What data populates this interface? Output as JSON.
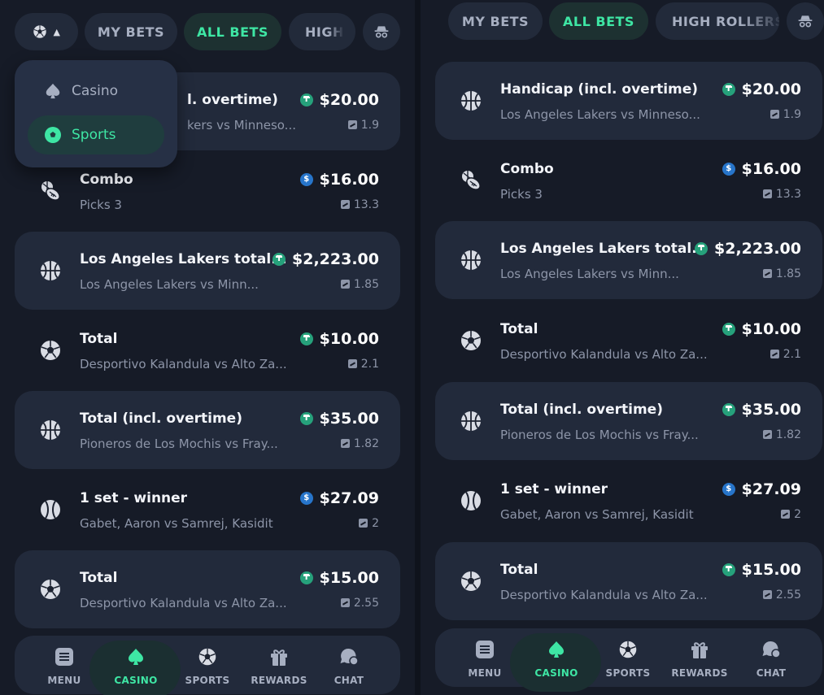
{
  "colors": {
    "accent": "#3ee6a4",
    "tether": "#26a17b",
    "usdc": "#2775ca",
    "bg": "#161b27",
    "card": "#222a3b"
  },
  "left": {
    "filter_button": {
      "icon": "soccer-ball-icon",
      "caret": "▲"
    },
    "tabs": [
      "MY BETS",
      "ALL BETS",
      "HIGH"
    ],
    "dropdown": [
      {
        "label": "Casino",
        "icon": "spade-icon"
      },
      {
        "label": "Sports",
        "icon": "soccer-ball-icon"
      }
    ],
    "bets": [
      {
        "title": "Handicap (incl. overtime)",
        "title_visible": "l. overtime)",
        "subtitle": "Los Angeles Lakers vs Minneso...",
        "subtitle_visible": "kers vs Minneso...",
        "amount": "$20.00",
        "coin": "tether",
        "odds": "1.9",
        "icon": "basketball-icon"
      },
      {
        "title": "Combo",
        "subtitle": "Picks 3",
        "amount": "$16.00",
        "coin": "usdc",
        "odds": "13.3",
        "icon": "combo-icon"
      },
      {
        "title": "Los Angeles Lakers total...",
        "subtitle": "Los Angeles Lakers vs Minn...",
        "amount": "$2,223.00",
        "coin": "tether",
        "odds": "1.85",
        "icon": "basketball-icon"
      },
      {
        "title": "Total",
        "subtitle": "Desportivo Kalandula vs Alto Za...",
        "amount": "$10.00",
        "coin": "tether",
        "odds": "2.1",
        "icon": "soccer-ball-icon"
      },
      {
        "title": "Total (incl. overtime)",
        "subtitle": "Pioneros de Los Mochis vs Fray...",
        "amount": "$35.00",
        "coin": "tether",
        "odds": "1.82",
        "icon": "basketball-icon"
      },
      {
        "title": "1 set - winner",
        "subtitle": "Gabet, Aaron vs Samrej, Kasidit",
        "amount": "$27.09",
        "coin": "usdc",
        "odds": "2",
        "icon": "tennis-ball-icon"
      },
      {
        "title": "Total",
        "subtitle": "Desportivo Kalandula vs Alto Za...",
        "amount": "$15.00",
        "coin": "tether",
        "odds": "2.55",
        "icon": "soccer-ball-icon"
      }
    ],
    "nav": [
      {
        "label": "MENU",
        "icon": "menu-icon"
      },
      {
        "label": "CASINO",
        "icon": "spade-icon",
        "active": true
      },
      {
        "label": "SPORTS",
        "icon": "soccer-ball-icon"
      },
      {
        "label": "REWARDS",
        "icon": "gift-icon"
      },
      {
        "label": "CHAT",
        "icon": "chat-icon"
      }
    ]
  },
  "right": {
    "tabs": [
      "MY BETS",
      "ALL BETS",
      "HIGH ROLLERS"
    ],
    "bets": [
      {
        "title": "Handicap (incl. overtime)",
        "subtitle": "Los Angeles Lakers vs Minneso...",
        "amount": "$20.00",
        "coin": "tether",
        "odds": "1.9"
      },
      {
        "title": "Combo",
        "subtitle": "Picks 3",
        "amount": "$16.00",
        "coin": "usdc",
        "odds": "13.3"
      },
      {
        "title": "Los Angeles Lakers total...",
        "subtitle": "Los Angeles Lakers vs Minn...",
        "amount": "$2,223.00",
        "coin": "tether",
        "odds": "1.85"
      },
      {
        "title": "Total",
        "subtitle": "Desportivo Kalandula vs Alto Za...",
        "amount": "$10.00",
        "coin": "tether",
        "odds": "2.1"
      },
      {
        "title": "Total (incl. overtime)",
        "subtitle": "Pioneros de Los Mochis vs Fray...",
        "amount": "$35.00",
        "coin": "tether",
        "odds": "1.82"
      },
      {
        "title": "1 set - winner",
        "subtitle": "Gabet, Aaron vs Samrej, Kasidit",
        "amount": "$27.09",
        "coin": "usdc",
        "odds": "2"
      },
      {
        "title": "Total",
        "subtitle": "Desportivo Kalandula vs Alto Za...",
        "amount": "$15.00",
        "coin": "tether",
        "odds": "2.55"
      }
    ],
    "nav": [
      {
        "label": "MENU"
      },
      {
        "label": "CASINO",
        "active": true
      },
      {
        "label": "SPORTS"
      },
      {
        "label": "REWARDS"
      },
      {
        "label": "CHAT"
      }
    ]
  }
}
